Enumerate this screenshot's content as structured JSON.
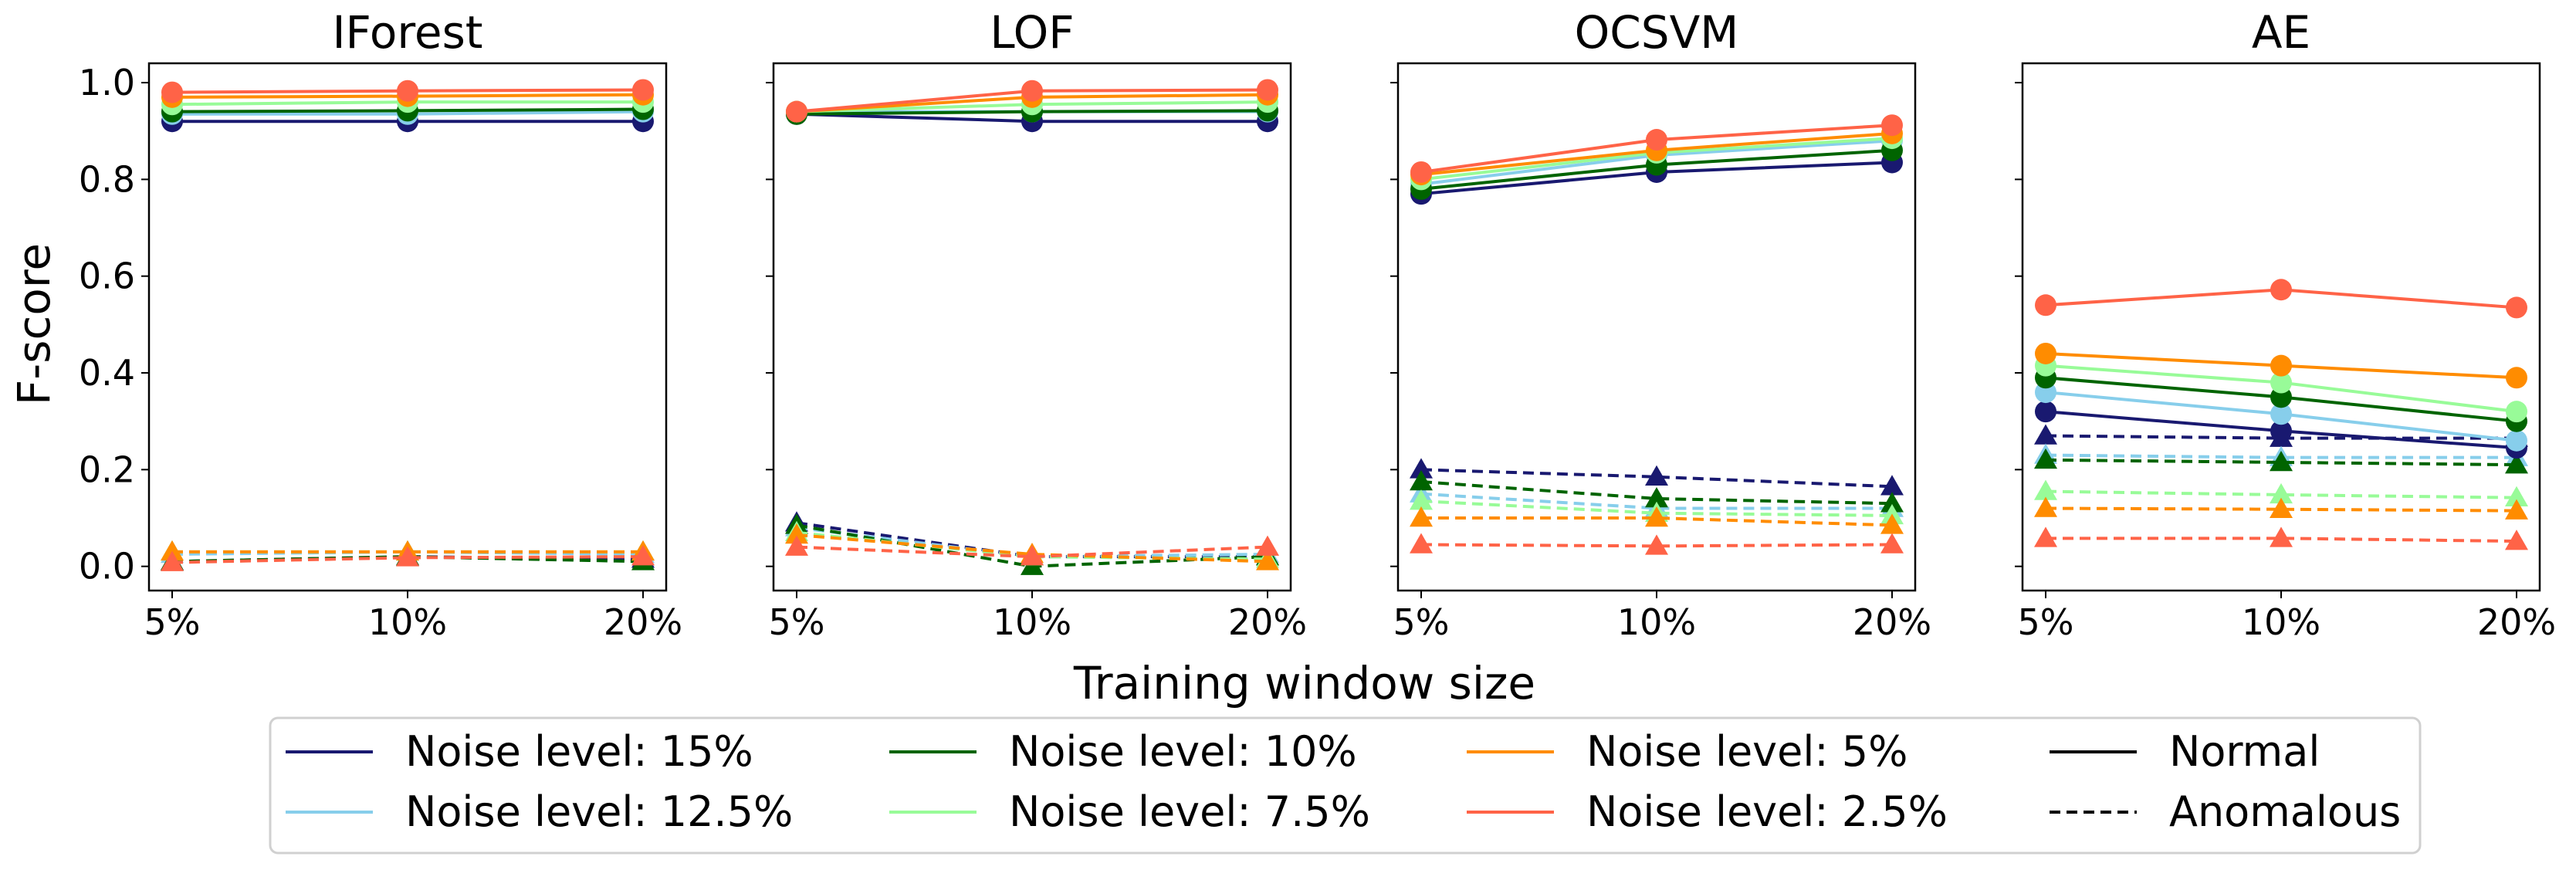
{
  "figure": {
    "ylabel": "F-score",
    "xlabel": "Training window size"
  },
  "legend": {
    "entries": [
      {
        "label": "Noise level: 15%",
        "color": "#191970",
        "style": "solid"
      },
      {
        "label": "Noise level: 10%",
        "color": "#006400",
        "style": "solid"
      },
      {
        "label": "Noise level: 5%",
        "color": "#FF8C00",
        "style": "solid"
      },
      {
        "label": "Normal",
        "color": "#000000",
        "style": "solid"
      },
      {
        "label": "Noise level: 12.5%",
        "color": "#87CEEB",
        "style": "solid"
      },
      {
        "label": "Noise level: 7.5%",
        "color": "#98FB98",
        "style": "solid"
      },
      {
        "label": "Noise level: 2.5%",
        "color": "#FF6347",
        "style": "solid"
      },
      {
        "label": "Anomalous",
        "color": "#000000",
        "style": "dashed"
      }
    ]
  },
  "series_styles": [
    {
      "noise": "15%",
      "color": "#191970"
    },
    {
      "noise": "12.5%",
      "color": "#87CEEB"
    },
    {
      "noise": "10%",
      "color": "#006400"
    },
    {
      "noise": "7.5%",
      "color": "#98FB98"
    },
    {
      "noise": "5%",
      "color": "#FF8C00"
    },
    {
      "noise": "2.5%",
      "color": "#FF6347"
    }
  ],
  "chart_data": [
    {
      "type": "line",
      "title": "IForest",
      "categories": [
        "5%",
        "10%",
        "20%"
      ],
      "ylim": [
        -0.05,
        1.04
      ],
      "yticks": [
        "0.0",
        "0.2",
        "0.4",
        "0.6",
        "0.8",
        "1.0"
      ],
      "normal": [
        {
          "noise": "15%",
          "values": [
            0.92,
            0.92,
            0.92
          ]
        },
        {
          "noise": "12.5%",
          "values": [
            0.935,
            0.935,
            0.94
          ]
        },
        {
          "noise": "10%",
          "values": [
            0.94,
            0.942,
            0.945
          ]
        },
        {
          "noise": "7.5%",
          "values": [
            0.955,
            0.96,
            0.96
          ]
        },
        {
          "noise": "5%",
          "values": [
            0.97,
            0.972,
            0.975
          ]
        },
        {
          "noise": "2.5%",
          "values": [
            0.98,
            0.983,
            0.985
          ]
        }
      ],
      "anomalous": [
        {
          "noise": "15%",
          "values": [
            0.01,
            0.02,
            0.015
          ]
        },
        {
          "noise": "12.5%",
          "values": [
            0.025,
            0.03,
            0.025
          ]
        },
        {
          "noise": "10%",
          "values": [
            0.01,
            0.02,
            0.01
          ]
        },
        {
          "noise": "7.5%",
          "values": [
            0.03,
            0.03,
            0.03
          ]
        },
        {
          "noise": "5%",
          "values": [
            0.03,
            0.03,
            0.03
          ]
        },
        {
          "noise": "2.5%",
          "values": [
            0.008,
            0.018,
            0.02
          ]
        }
      ]
    },
    {
      "type": "line",
      "title": "LOF",
      "categories": [
        "5%",
        "10%",
        "20%"
      ],
      "ylim": [
        -0.05,
        1.04
      ],
      "yticks": [
        "0.0",
        "0.2",
        "0.4",
        "0.6",
        "0.8",
        "1.0"
      ],
      "normal": [
        {
          "noise": "15%",
          "values": [
            0.935,
            0.92,
            0.92
          ]
        },
        {
          "noise": "12.5%",
          "values": [
            0.94,
            0.94,
            0.94
          ]
        },
        {
          "noise": "10%",
          "values": [
            0.935,
            0.94,
            0.942
          ]
        },
        {
          "noise": "7.5%",
          "values": [
            0.94,
            0.955,
            0.96
          ]
        },
        {
          "noise": "5%",
          "values": [
            0.94,
            0.97,
            0.975
          ]
        },
        {
          "noise": "2.5%",
          "values": [
            0.94,
            0.983,
            0.985
          ]
        }
      ],
      "anomalous": [
        {
          "noise": "15%",
          "values": [
            0.09,
            0.02,
            0.02
          ]
        },
        {
          "noise": "12.5%",
          "values": [
            0.08,
            0.02,
            0.025
          ]
        },
        {
          "noise": "10%",
          "values": [
            0.085,
            0.0,
            0.02
          ]
        },
        {
          "noise": "7.5%",
          "values": [
            0.07,
            0.02,
            0.015
          ]
        },
        {
          "noise": "5%",
          "values": [
            0.065,
            0.025,
            0.01
          ]
        },
        {
          "noise": "2.5%",
          "values": [
            0.04,
            0.02,
            0.04
          ]
        }
      ]
    },
    {
      "type": "line",
      "title": "OCSVM",
      "categories": [
        "5%",
        "10%",
        "20%"
      ],
      "ylim": [
        -0.05,
        1.04
      ],
      "yticks": [
        "0.0",
        "0.2",
        "0.4",
        "0.6",
        "0.8",
        "1.0"
      ],
      "normal": [
        {
          "noise": "15%",
          "values": [
            0.77,
            0.815,
            0.835
          ]
        },
        {
          "noise": "12.5%",
          "values": [
            0.79,
            0.85,
            0.88
          ]
        },
        {
          "noise": "10%",
          "values": [
            0.78,
            0.83,
            0.86
          ]
        },
        {
          "noise": "7.5%",
          "values": [
            0.8,
            0.855,
            0.885
          ]
        },
        {
          "noise": "5%",
          "values": [
            0.81,
            0.86,
            0.895
          ]
        },
        {
          "noise": "2.5%",
          "values": [
            0.815,
            0.882,
            0.912
          ]
        }
      ],
      "anomalous": [
        {
          "noise": "15%",
          "values": [
            0.2,
            0.185,
            0.165
          ]
        },
        {
          "noise": "12.5%",
          "values": [
            0.15,
            0.12,
            0.12
          ]
        },
        {
          "noise": "10%",
          "values": [
            0.175,
            0.14,
            0.13
          ]
        },
        {
          "noise": "7.5%",
          "values": [
            0.135,
            0.11,
            0.105
          ]
        },
        {
          "noise": "5%",
          "values": [
            0.1,
            0.1,
            0.085
          ]
        },
        {
          "noise": "2.5%",
          "values": [
            0.045,
            0.042,
            0.045
          ]
        }
      ]
    },
    {
      "type": "line",
      "title": "AE",
      "categories": [
        "5%",
        "10%",
        "20%"
      ],
      "ylim": [
        -0.05,
        1.04
      ],
      "yticks": [
        "0.0",
        "0.2",
        "0.4",
        "0.6",
        "0.8",
        "1.0"
      ],
      "normal": [
        {
          "noise": "15%",
          "values": [
            0.32,
            0.28,
            0.245
          ]
        },
        {
          "noise": "12.5%",
          "values": [
            0.36,
            0.315,
            0.26
          ]
        },
        {
          "noise": "10%",
          "values": [
            0.39,
            0.35,
            0.3
          ]
        },
        {
          "noise": "7.5%",
          "values": [
            0.415,
            0.38,
            0.32
          ]
        },
        {
          "noise": "5%",
          "values": [
            0.44,
            0.415,
            0.39
          ]
        },
        {
          "noise": "2.5%",
          "values": [
            0.54,
            0.572,
            0.535
          ]
        }
      ],
      "anomalous": [
        {
          "noise": "15%",
          "values": [
            0.27,
            0.265,
            0.265
          ]
        },
        {
          "noise": "12.5%",
          "values": [
            0.23,
            0.225,
            0.225
          ]
        },
        {
          "noise": "10%",
          "values": [
            0.22,
            0.215,
            0.21
          ]
        },
        {
          "noise": "7.5%",
          "values": [
            0.155,
            0.148,
            0.142
          ]
        },
        {
          "noise": "5%",
          "values": [
            0.12,
            0.118,
            0.115
          ]
        },
        {
          "noise": "2.5%",
          "values": [
            0.058,
            0.058,
            0.052
          ]
        }
      ]
    }
  ]
}
